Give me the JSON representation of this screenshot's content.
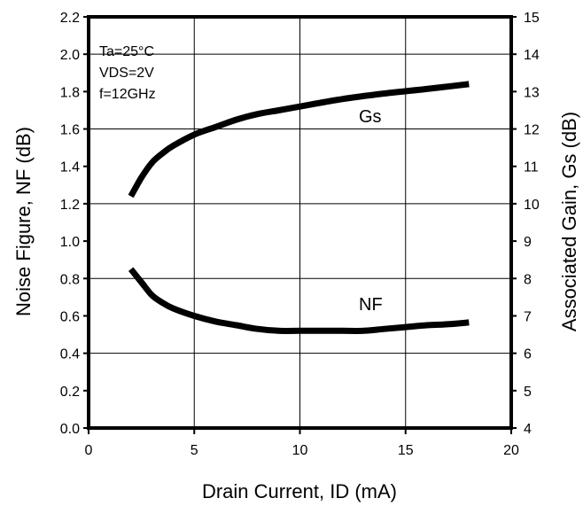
{
  "chart_data": {
    "type": "line",
    "title": "",
    "xlabel": "Drain Current, ID (mA)",
    "ylabel_left": "Noise Figure, NF (dB)",
    "ylabel_right": "Associated Gain, Gs (dB)",
    "xlim": [
      0,
      20
    ],
    "ylim_left": [
      0.0,
      2.2
    ],
    "ylim_right": [
      4,
      15
    ],
    "grid": true,
    "x_ticks": [
      "0",
      "5",
      "10",
      "15",
      "20"
    ],
    "y_left_ticks": [
      "0.0",
      "0.2",
      "0.4",
      "0.6",
      "0.8",
      "1.0",
      "1.2",
      "1.4",
      "1.6",
      "1.8",
      "2.0",
      "2.2"
    ],
    "y_right_ticks": [
      "4",
      "5",
      "6",
      "7",
      "8",
      "9",
      "10",
      "11",
      "12",
      "13",
      "14",
      "15"
    ],
    "conditions": [
      "Ta=25°C",
      "VDS=2V",
      "f=12GHz"
    ],
    "series": [
      {
        "name": "Gs",
        "axis": "right",
        "x": [
          2,
          2.5,
          3,
          3.5,
          4,
          5,
          6,
          7,
          8,
          9,
          10,
          12,
          14,
          16,
          18
        ],
        "values": [
          10.2,
          10.7,
          11.1,
          11.35,
          11.55,
          11.85,
          12.05,
          12.25,
          12.4,
          12.5,
          12.6,
          12.8,
          12.95,
          13.07,
          13.2
        ]
      },
      {
        "name": "NF",
        "axis": "left",
        "x": [
          2,
          2.5,
          3,
          3.5,
          4,
          5,
          6,
          7,
          8,
          9,
          10,
          11,
          12,
          13,
          14,
          15,
          16,
          17,
          18
        ],
        "values": [
          0.85,
          0.78,
          0.71,
          0.67,
          0.64,
          0.6,
          0.57,
          0.55,
          0.53,
          0.52,
          0.52,
          0.52,
          0.52,
          0.52,
          0.53,
          0.54,
          0.55,
          0.555,
          0.565
        ]
      }
    ]
  }
}
